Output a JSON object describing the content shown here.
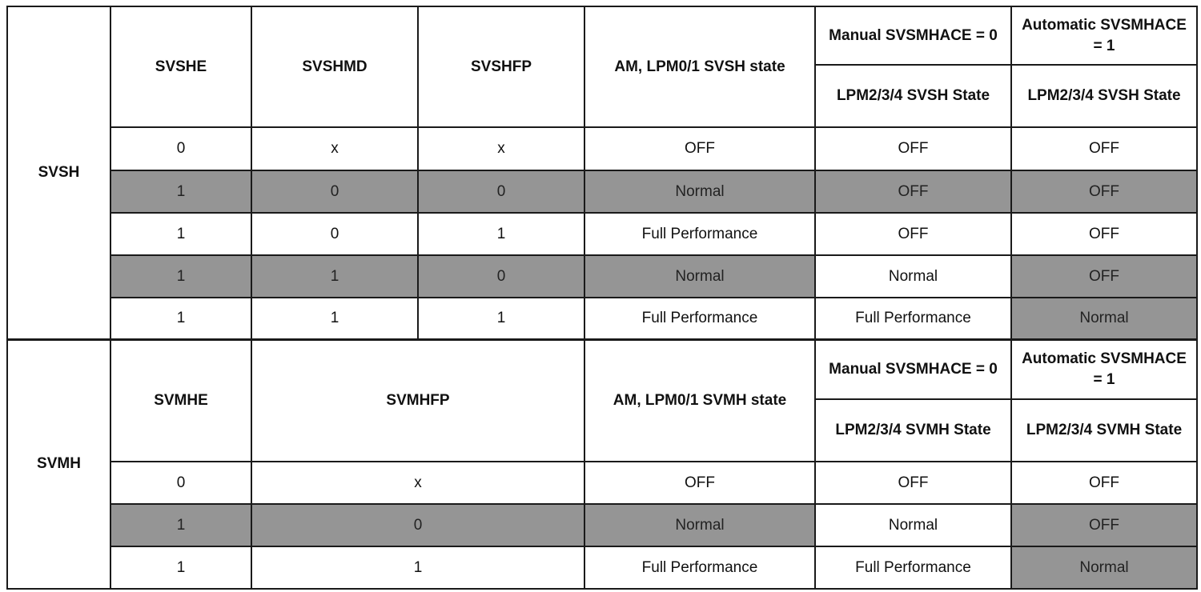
{
  "svsh": {
    "label": "SVSH",
    "headers": {
      "en": "SVSHE",
      "md": "SVSHMD",
      "fp": "SVSHFP",
      "am": "AM, LPM0/1 SVSH state",
      "manual": "Manual SVSMHACE = 0",
      "automatic": "Automatic SVSMHACE = 1",
      "manual_state": "LPM2/3/4 SVSH State",
      "automatic_state": "LPM2/3/4 SVSH State"
    },
    "rows": [
      [
        {
          "text": "0",
          "shaded": false
        },
        {
          "text": "x",
          "shaded": false
        },
        {
          "text": "x",
          "shaded": false
        },
        {
          "text": "OFF",
          "shaded": false
        },
        {
          "text": "OFF",
          "shaded": false
        },
        {
          "text": "OFF",
          "shaded": false
        }
      ],
      [
        {
          "text": "1",
          "shaded": true
        },
        {
          "text": "0",
          "shaded": true
        },
        {
          "text": "0",
          "shaded": true
        },
        {
          "text": "Normal",
          "shaded": true
        },
        {
          "text": "OFF",
          "shaded": true
        },
        {
          "text": "OFF",
          "shaded": true
        }
      ],
      [
        {
          "text": "1",
          "shaded": false
        },
        {
          "text": "0",
          "shaded": false
        },
        {
          "text": "1",
          "shaded": false
        },
        {
          "text": "Full Performance",
          "shaded": false
        },
        {
          "text": "OFF",
          "shaded": false
        },
        {
          "text": "OFF",
          "shaded": false
        }
      ],
      [
        {
          "text": "1",
          "shaded": true
        },
        {
          "text": "1",
          "shaded": true
        },
        {
          "text": "0",
          "shaded": true
        },
        {
          "text": "Normal",
          "shaded": true
        },
        {
          "text": "Normal",
          "shaded": false
        },
        {
          "text": "OFF",
          "shaded": true
        }
      ],
      [
        {
          "text": "1",
          "shaded": false
        },
        {
          "text": "1",
          "shaded": false
        },
        {
          "text": "1",
          "shaded": false
        },
        {
          "text": "Full Performance",
          "shaded": false
        },
        {
          "text": "Full Performance",
          "shaded": false
        },
        {
          "text": "Normal",
          "shaded": true
        }
      ]
    ]
  },
  "svmh": {
    "label": "SVMH",
    "headers": {
      "en": "SVMHE",
      "fp": "SVMHFP",
      "am": "AM, LPM0/1 SVMH state",
      "manual": "Manual SVSMHACE = 0",
      "automatic": "Automatic SVSMHACE = 1",
      "manual_state": "LPM2/3/4 SVMH State",
      "automatic_state": "LPM2/3/4 SVMH State"
    },
    "rows": [
      [
        {
          "text": "0",
          "shaded": false
        },
        {
          "text": "x",
          "shaded": false
        },
        {
          "text": "OFF",
          "shaded": false
        },
        {
          "text": "OFF",
          "shaded": false
        },
        {
          "text": "OFF",
          "shaded": false
        }
      ],
      [
        {
          "text": "1",
          "shaded": true
        },
        {
          "text": "0",
          "shaded": true
        },
        {
          "text": "Normal",
          "shaded": true
        },
        {
          "text": "Normal",
          "shaded": false
        },
        {
          "text": "OFF",
          "shaded": true
        }
      ],
      [
        {
          "text": "1",
          "shaded": false
        },
        {
          "text": "1",
          "shaded": false
        },
        {
          "text": "Full Performance",
          "shaded": false
        },
        {
          "text": "Full Performance",
          "shaded": false
        },
        {
          "text": "Normal",
          "shaded": true
        }
      ]
    ]
  },
  "colors": {
    "shaded": "#959595",
    "border": "#1a1a1a"
  }
}
